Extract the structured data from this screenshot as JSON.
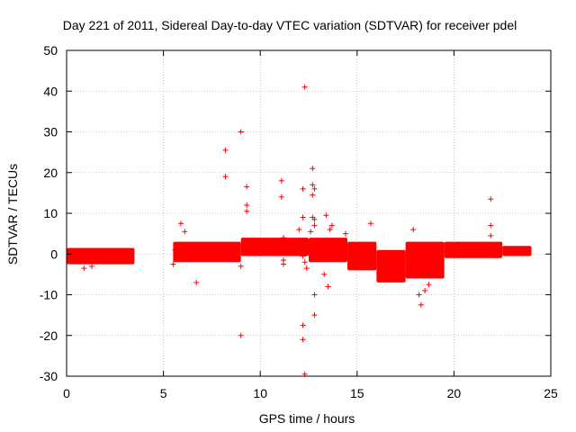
{
  "chart_data": {
    "type": "scatter",
    "title": "Day 221 of 2011, Sidereal Day-to-day VTEC variation (SDTVAR) for receiver pdel",
    "xlabel": "GPS time / hours",
    "ylabel": "SDTVAR / TECUs",
    "xlim": [
      0,
      25
    ],
    "ylim": [
      -30,
      50
    ],
    "xticks": [
      0,
      5,
      10,
      15,
      20,
      25
    ],
    "yticks": [
      -30,
      -20,
      -10,
      0,
      10,
      20,
      30,
      40,
      50
    ],
    "xtick_labels": [
      "0",
      "5",
      "10",
      "15",
      "20",
      "25"
    ],
    "ytick_labels": [
      "-30",
      "-20",
      "-10",
      "0",
      "10",
      "20",
      "30",
      "40",
      "50"
    ],
    "grid": true,
    "legend": "none",
    "marker": "+",
    "series_color": "#ff0000",
    "series": [
      {
        "name": "SDTVAR",
        "bands": [
          {
            "x0": 0.0,
            "x1": 3.5,
            "lower": -2.5,
            "upper": 1.5
          },
          {
            "x0": 5.5,
            "x1": 9.0,
            "lower": -2.0,
            "upper": 3.0
          },
          {
            "x0": 9.0,
            "x1": 12.5,
            "lower": -0.5,
            "upper": 4.0
          },
          {
            "x0": 12.5,
            "x1": 14.5,
            "lower": -2.0,
            "upper": 4.0
          },
          {
            "x0": 14.5,
            "x1": 16.0,
            "lower": -4.0,
            "upper": 3.0
          },
          {
            "x0": 16.0,
            "x1": 17.5,
            "lower": -7.0,
            "upper": 1.0
          },
          {
            "x0": 17.5,
            "x1": 19.5,
            "lower": -6.0,
            "upper": 3.0
          },
          {
            "x0": 19.5,
            "x1": 22.5,
            "lower": -1.0,
            "upper": 3.0
          },
          {
            "x0": 22.5,
            "x1": 24.0,
            "lower": -0.5,
            "upper": 2.0
          }
        ],
        "outliers": [
          {
            "x": 0.9,
            "y": -3.5
          },
          {
            "x": 1.3,
            "y": -3.0
          },
          {
            "x": 5.5,
            "y": -2.5
          },
          {
            "x": 5.6,
            "y": 1.0
          },
          {
            "x": 5.9,
            "y": 7.5
          },
          {
            "x": 6.1,
            "y": 5.5
          },
          {
            "x": 6.7,
            "y": -7.0
          },
          {
            "x": 8.2,
            "y": 25.5
          },
          {
            "x": 8.2,
            "y": 19.0
          },
          {
            "x": 9.0,
            "y": 30.0
          },
          {
            "x": 9.0,
            "y": -20.0
          },
          {
            "x": 9.0,
            "y": -3.0
          },
          {
            "x": 9.3,
            "y": 16.5
          },
          {
            "x": 9.3,
            "y": 12.0
          },
          {
            "x": 9.3,
            "y": 10.5
          },
          {
            "x": 11.1,
            "y": 18.0
          },
          {
            "x": 11.1,
            "y": 14.0
          },
          {
            "x": 11.2,
            "y": 4.0
          },
          {
            "x": 11.2,
            "y": -1.5
          },
          {
            "x": 11.2,
            "y": -2.5
          },
          {
            "x": 12.0,
            "y": 6.0
          },
          {
            "x": 12.1,
            "y": 2.5
          },
          {
            "x": 12.2,
            "y": -0.5
          },
          {
            "x": 12.3,
            "y": 41.0
          },
          {
            "x": 12.2,
            "y": 16.0
          },
          {
            "x": 12.2,
            "y": 9.0
          },
          {
            "x": 12.2,
            "y": -17.5
          },
          {
            "x": 12.2,
            "y": -21.0
          },
          {
            "x": 12.3,
            "y": -29.5
          },
          {
            "x": 12.3,
            "y": -2.0
          },
          {
            "x": 12.4,
            "y": -3.5
          },
          {
            "x": 12.6,
            "y": 5.5
          },
          {
            "x": 12.7,
            "y": 21.0
          },
          {
            "x": 12.7,
            "y": 17.0
          },
          {
            "x": 12.8,
            "y": 16.0
          },
          {
            "x": 12.7,
            "y": 14.5
          },
          {
            "x": 12.7,
            "y": 9.0
          },
          {
            "x": 12.8,
            "y": 8.5
          },
          {
            "x": 12.8,
            "y": 7.0
          },
          {
            "x": 12.8,
            "y": -10.0
          },
          {
            "x": 12.8,
            "y": -15.0
          },
          {
            "x": 13.3,
            "y": -5.0
          },
          {
            "x": 13.4,
            "y": 9.5
          },
          {
            "x": 13.5,
            "y": -8.0
          },
          {
            "x": 13.6,
            "y": 6.0
          },
          {
            "x": 13.7,
            "y": 7.0
          },
          {
            "x": 14.4,
            "y": 5.0
          },
          {
            "x": 15.7,
            "y": 7.5
          },
          {
            "x": 17.9,
            "y": 6.0
          },
          {
            "x": 18.2,
            "y": -10.0
          },
          {
            "x": 18.3,
            "y": -12.5
          },
          {
            "x": 18.5,
            "y": -9.0
          },
          {
            "x": 18.7,
            "y": -7.5
          },
          {
            "x": 21.9,
            "y": 13.5
          },
          {
            "x": 21.9,
            "y": 7.0
          },
          {
            "x": 21.9,
            "y": 4.5
          }
        ]
      }
    ]
  }
}
